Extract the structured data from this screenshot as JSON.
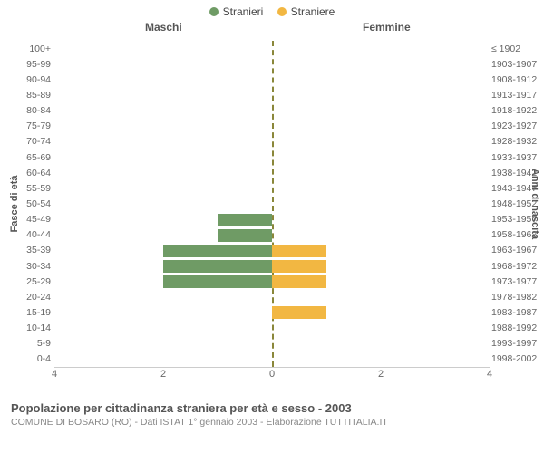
{
  "legend": {
    "male": {
      "label": "Stranieri",
      "color": "#6f9b65"
    },
    "female": {
      "label": "Straniere",
      "color": "#f2b742"
    }
  },
  "column_headers": {
    "male": "Maschi",
    "female": "Femmine"
  },
  "axis_titles": {
    "left": "Fasce di età",
    "right": "Anni di nascita"
  },
  "chart": {
    "type": "population-pyramid",
    "xmax": 4,
    "xticks": [
      4,
      2,
      0,
      2,
      4
    ],
    "center_color": "#8a873a",
    "grid_color": "#e0e0e0",
    "bg": "#ffffff",
    "rows": [
      {
        "age": "100+",
        "birth": "≤ 1902",
        "m": 0,
        "f": 0
      },
      {
        "age": "95-99",
        "birth": "1903-1907",
        "m": 0,
        "f": 0
      },
      {
        "age": "90-94",
        "birth": "1908-1912",
        "m": 0,
        "f": 0
      },
      {
        "age": "85-89",
        "birth": "1913-1917",
        "m": 0,
        "f": 0
      },
      {
        "age": "80-84",
        "birth": "1918-1922",
        "m": 0,
        "f": 0
      },
      {
        "age": "75-79",
        "birth": "1923-1927",
        "m": 0,
        "f": 0
      },
      {
        "age": "70-74",
        "birth": "1928-1932",
        "m": 0,
        "f": 0
      },
      {
        "age": "65-69",
        "birth": "1933-1937",
        "m": 0,
        "f": 0
      },
      {
        "age": "60-64",
        "birth": "1938-1942",
        "m": 0,
        "f": 0
      },
      {
        "age": "55-59",
        "birth": "1943-1947",
        "m": 0,
        "f": 0
      },
      {
        "age": "50-54",
        "birth": "1948-1952",
        "m": 0,
        "f": 0
      },
      {
        "age": "45-49",
        "birth": "1953-1957",
        "m": 1,
        "f": 0
      },
      {
        "age": "40-44",
        "birth": "1958-1962",
        "m": 1,
        "f": 0
      },
      {
        "age": "35-39",
        "birth": "1963-1967",
        "m": 2,
        "f": 1
      },
      {
        "age": "30-34",
        "birth": "1968-1972",
        "m": 2,
        "f": 1
      },
      {
        "age": "25-29",
        "birth": "1973-1977",
        "m": 2,
        "f": 1
      },
      {
        "age": "20-24",
        "birth": "1978-1982",
        "m": 0,
        "f": 0
      },
      {
        "age": "15-19",
        "birth": "1983-1987",
        "m": 0,
        "f": 1
      },
      {
        "age": "10-14",
        "birth": "1988-1992",
        "m": 0,
        "f": 0
      },
      {
        "age": "5-9",
        "birth": "1993-1997",
        "m": 0,
        "f": 0
      },
      {
        "age": "0-4",
        "birth": "1998-2002",
        "m": 0,
        "f": 0
      }
    ]
  },
  "caption": {
    "title": "Popolazione per cittadinanza straniera per età e sesso - 2003",
    "subtitle": "COMUNE DI BOSARO (RO) - Dati ISTAT 1° gennaio 2003 - Elaborazione TUTTITALIA.IT"
  }
}
